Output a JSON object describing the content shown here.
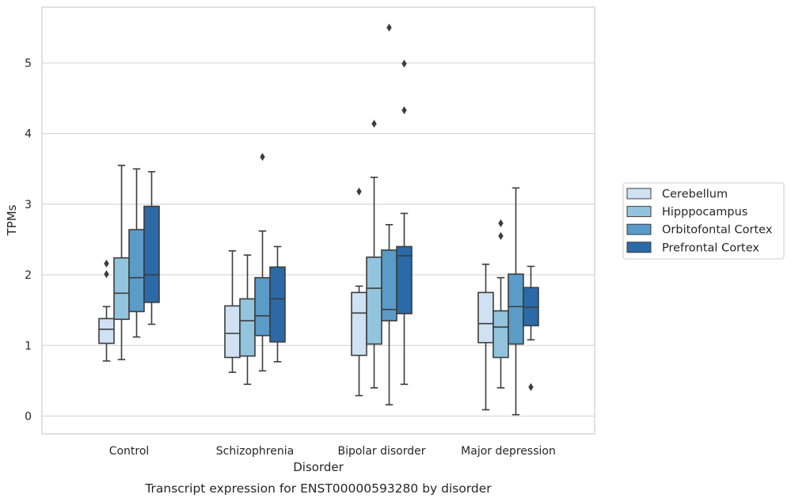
{
  "caption": "Transcript expression for ENST00000593280 by disorder",
  "chart_data": {
    "type": "box",
    "xlabel": "Disorder",
    "ylabel": "TPMs",
    "ylim": [
      -0.25,
      5.85
    ],
    "yticks": [
      0,
      1,
      2,
      3,
      4,
      5
    ],
    "grid": "horizontal",
    "legend_position": "right",
    "categories": [
      "Control",
      "Schizophrenia",
      "Bipolar disorder",
      "Major depression"
    ],
    "series": [
      {
        "name": "Cerebellum",
        "color": "#cfe1f2",
        "boxes": [
          {
            "whislo": 0.78,
            "q1": 1.03,
            "med": 1.23,
            "q3": 1.38,
            "whishi": 1.55,
            "fliers": [
              2.01,
              2.16
            ]
          },
          {
            "whislo": 0.62,
            "q1": 0.83,
            "med": 1.17,
            "q3": 1.56,
            "whishi": 2.34,
            "fliers": []
          },
          {
            "whislo": 0.29,
            "q1": 0.86,
            "med": 1.46,
            "q3": 1.75,
            "whishi": 1.84,
            "fliers": [
              3.18
            ]
          },
          {
            "whislo": 0.09,
            "q1": 1.04,
            "med": 1.31,
            "q3": 1.75,
            "whishi": 2.15,
            "fliers": []
          }
        ]
      },
      {
        "name": "Hipppocampus",
        "color": "#93c4de",
        "boxes": [
          {
            "whislo": 0.8,
            "q1": 1.37,
            "med": 1.74,
            "q3": 2.24,
            "whishi": 3.55,
            "fliers": []
          },
          {
            "whislo": 0.45,
            "q1": 0.85,
            "med": 1.35,
            "q3": 1.66,
            "whishi": 2.28,
            "fliers": []
          },
          {
            "whislo": 0.4,
            "q1": 1.02,
            "med": 1.81,
            "q3": 2.25,
            "whishi": 3.38,
            "fliers": [
              4.14
            ]
          },
          {
            "whislo": 0.4,
            "q1": 0.83,
            "med": 1.26,
            "q3": 1.49,
            "whishi": 1.96,
            "fliers": [
              2.55,
              2.73
            ]
          }
        ]
      },
      {
        "name": "Orbitofontal Cortex",
        "color": "#5a9bc8",
        "boxes": [
          {
            "whislo": 1.12,
            "q1": 1.48,
            "med": 1.96,
            "q3": 2.64,
            "whishi": 3.5,
            "fliers": []
          },
          {
            "whislo": 0.64,
            "q1": 1.14,
            "med": 1.42,
            "q3": 1.96,
            "whishi": 2.62,
            "fliers": [
              3.67
            ]
          },
          {
            "whislo": 0.16,
            "q1": 1.35,
            "med": 1.51,
            "q3": 2.35,
            "whishi": 2.71,
            "fliers": [
              5.5
            ]
          },
          {
            "whislo": 0.02,
            "q1": 1.02,
            "med": 1.55,
            "q3": 2.01,
            "whishi": 3.23,
            "fliers": []
          }
        ]
      },
      {
        "name": "Prefrontal Cortex",
        "color": "#2b6aa6",
        "boxes": [
          {
            "whislo": 1.3,
            "q1": 1.61,
            "med": 2.0,
            "q3": 2.97,
            "whishi": 3.46,
            "fliers": []
          },
          {
            "whislo": 0.77,
            "q1": 1.05,
            "med": 1.66,
            "q3": 2.11,
            "whishi": 2.4,
            "fliers": []
          },
          {
            "whislo": 0.45,
            "q1": 1.45,
            "med": 2.27,
            "q3": 2.4,
            "whishi": 2.87,
            "fliers": [
              4.33,
              4.99
            ]
          },
          {
            "whislo": 1.08,
            "q1": 1.28,
            "med": 1.54,
            "q3": 1.82,
            "whishi": 2.12,
            "fliers": [
              0.41
            ]
          }
        ]
      }
    ]
  }
}
